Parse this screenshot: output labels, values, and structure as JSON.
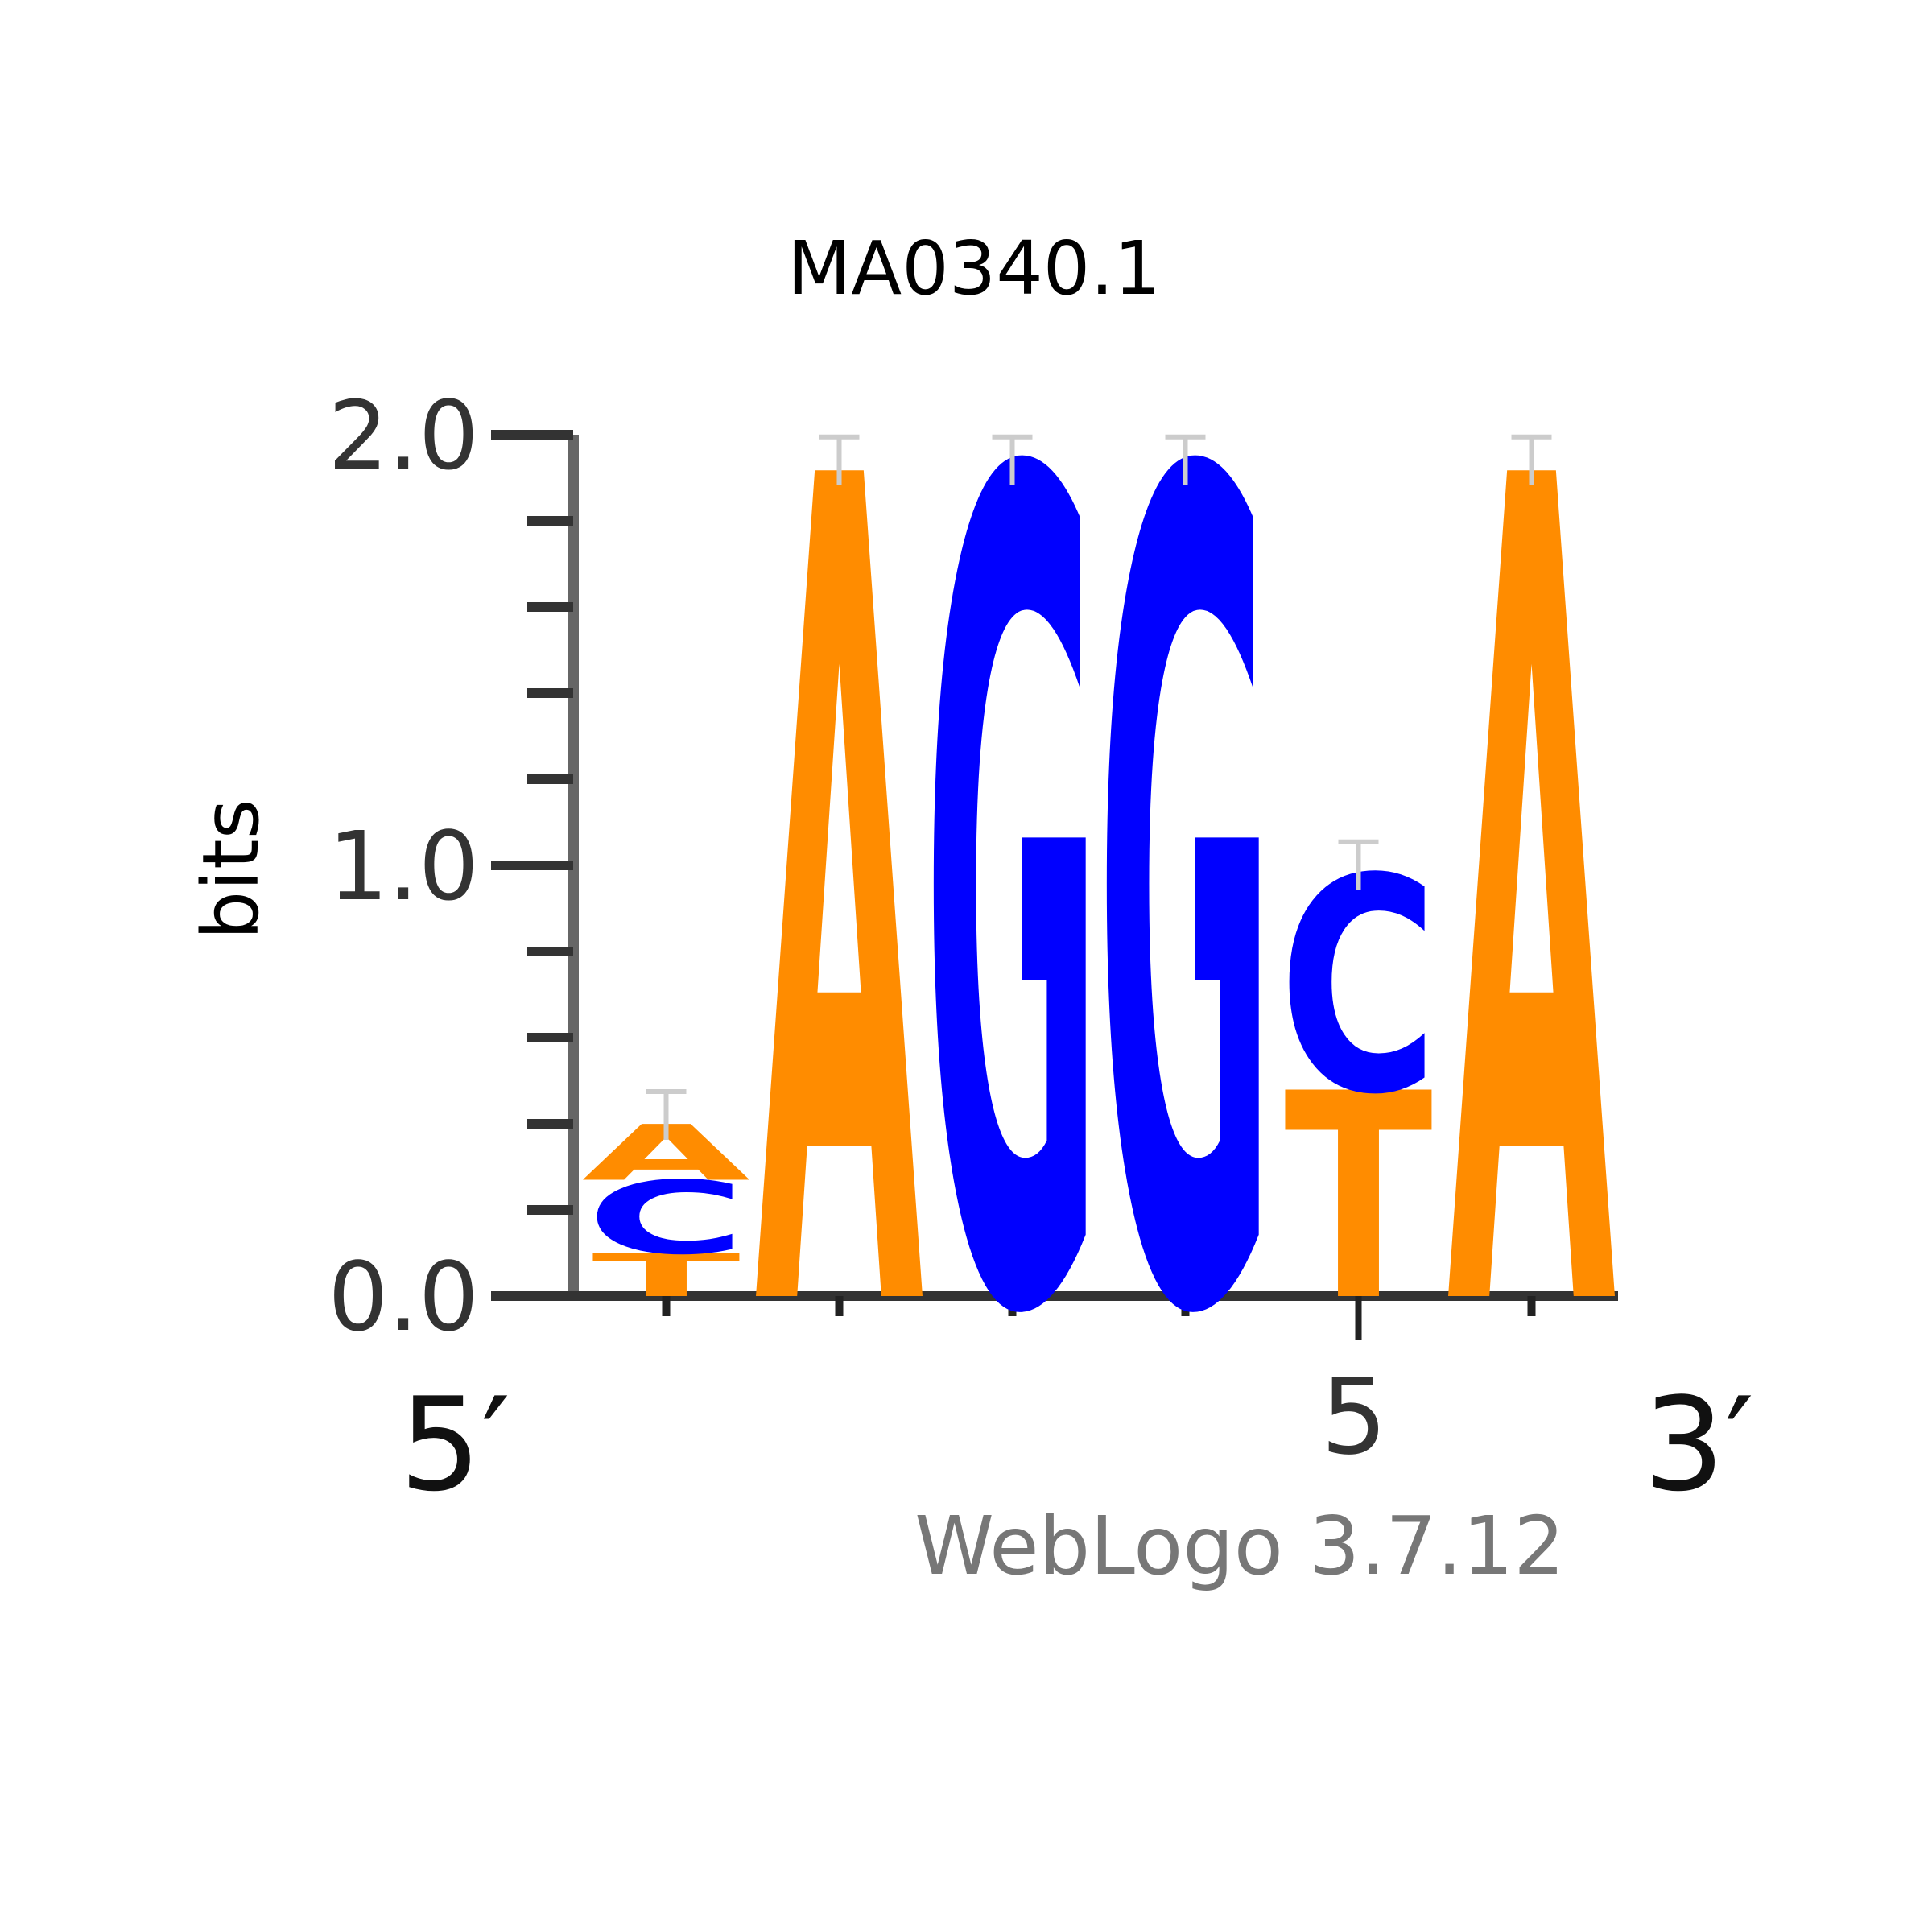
{
  "chart_data": {
    "type": "sequence-logo",
    "title": "MA0340.1",
    "ylabel": "bits",
    "ylim": [
      0,
      2
    ],
    "yticks": [
      "0.0",
      "1.0",
      "2.0"
    ],
    "x_tick_label_positions": [
      5
    ],
    "x_tick_label": "5",
    "end_labels": {
      "left": "5′",
      "right": "3′"
    },
    "credit": "WebLogo 3.7.12",
    "colors": {
      "A": "#ff8c00",
      "C": "#0000ff",
      "G": "#0000ff",
      "T": "#ff8c00"
    },
    "positions": [
      {
        "index": 1,
        "letters": [
          {
            "base": "T",
            "bits": 0.1
          },
          {
            "base": "C",
            "bits": 0.17
          },
          {
            "base": "A",
            "bits": 0.13
          }
        ]
      },
      {
        "index": 2,
        "letters": [
          {
            "base": "A",
            "bits": 1.92
          }
        ]
      },
      {
        "index": 3,
        "letters": [
          {
            "base": "G",
            "bits": 1.92
          }
        ]
      },
      {
        "index": 4,
        "letters": [
          {
            "base": "G",
            "bits": 1.92
          }
        ]
      },
      {
        "index": 5,
        "letters": [
          {
            "base": "T",
            "bits": 0.48
          },
          {
            "base": "C",
            "bits": 0.5
          }
        ]
      },
      {
        "index": 6,
        "letters": [
          {
            "base": "A",
            "bits": 1.92
          }
        ]
      }
    ]
  }
}
